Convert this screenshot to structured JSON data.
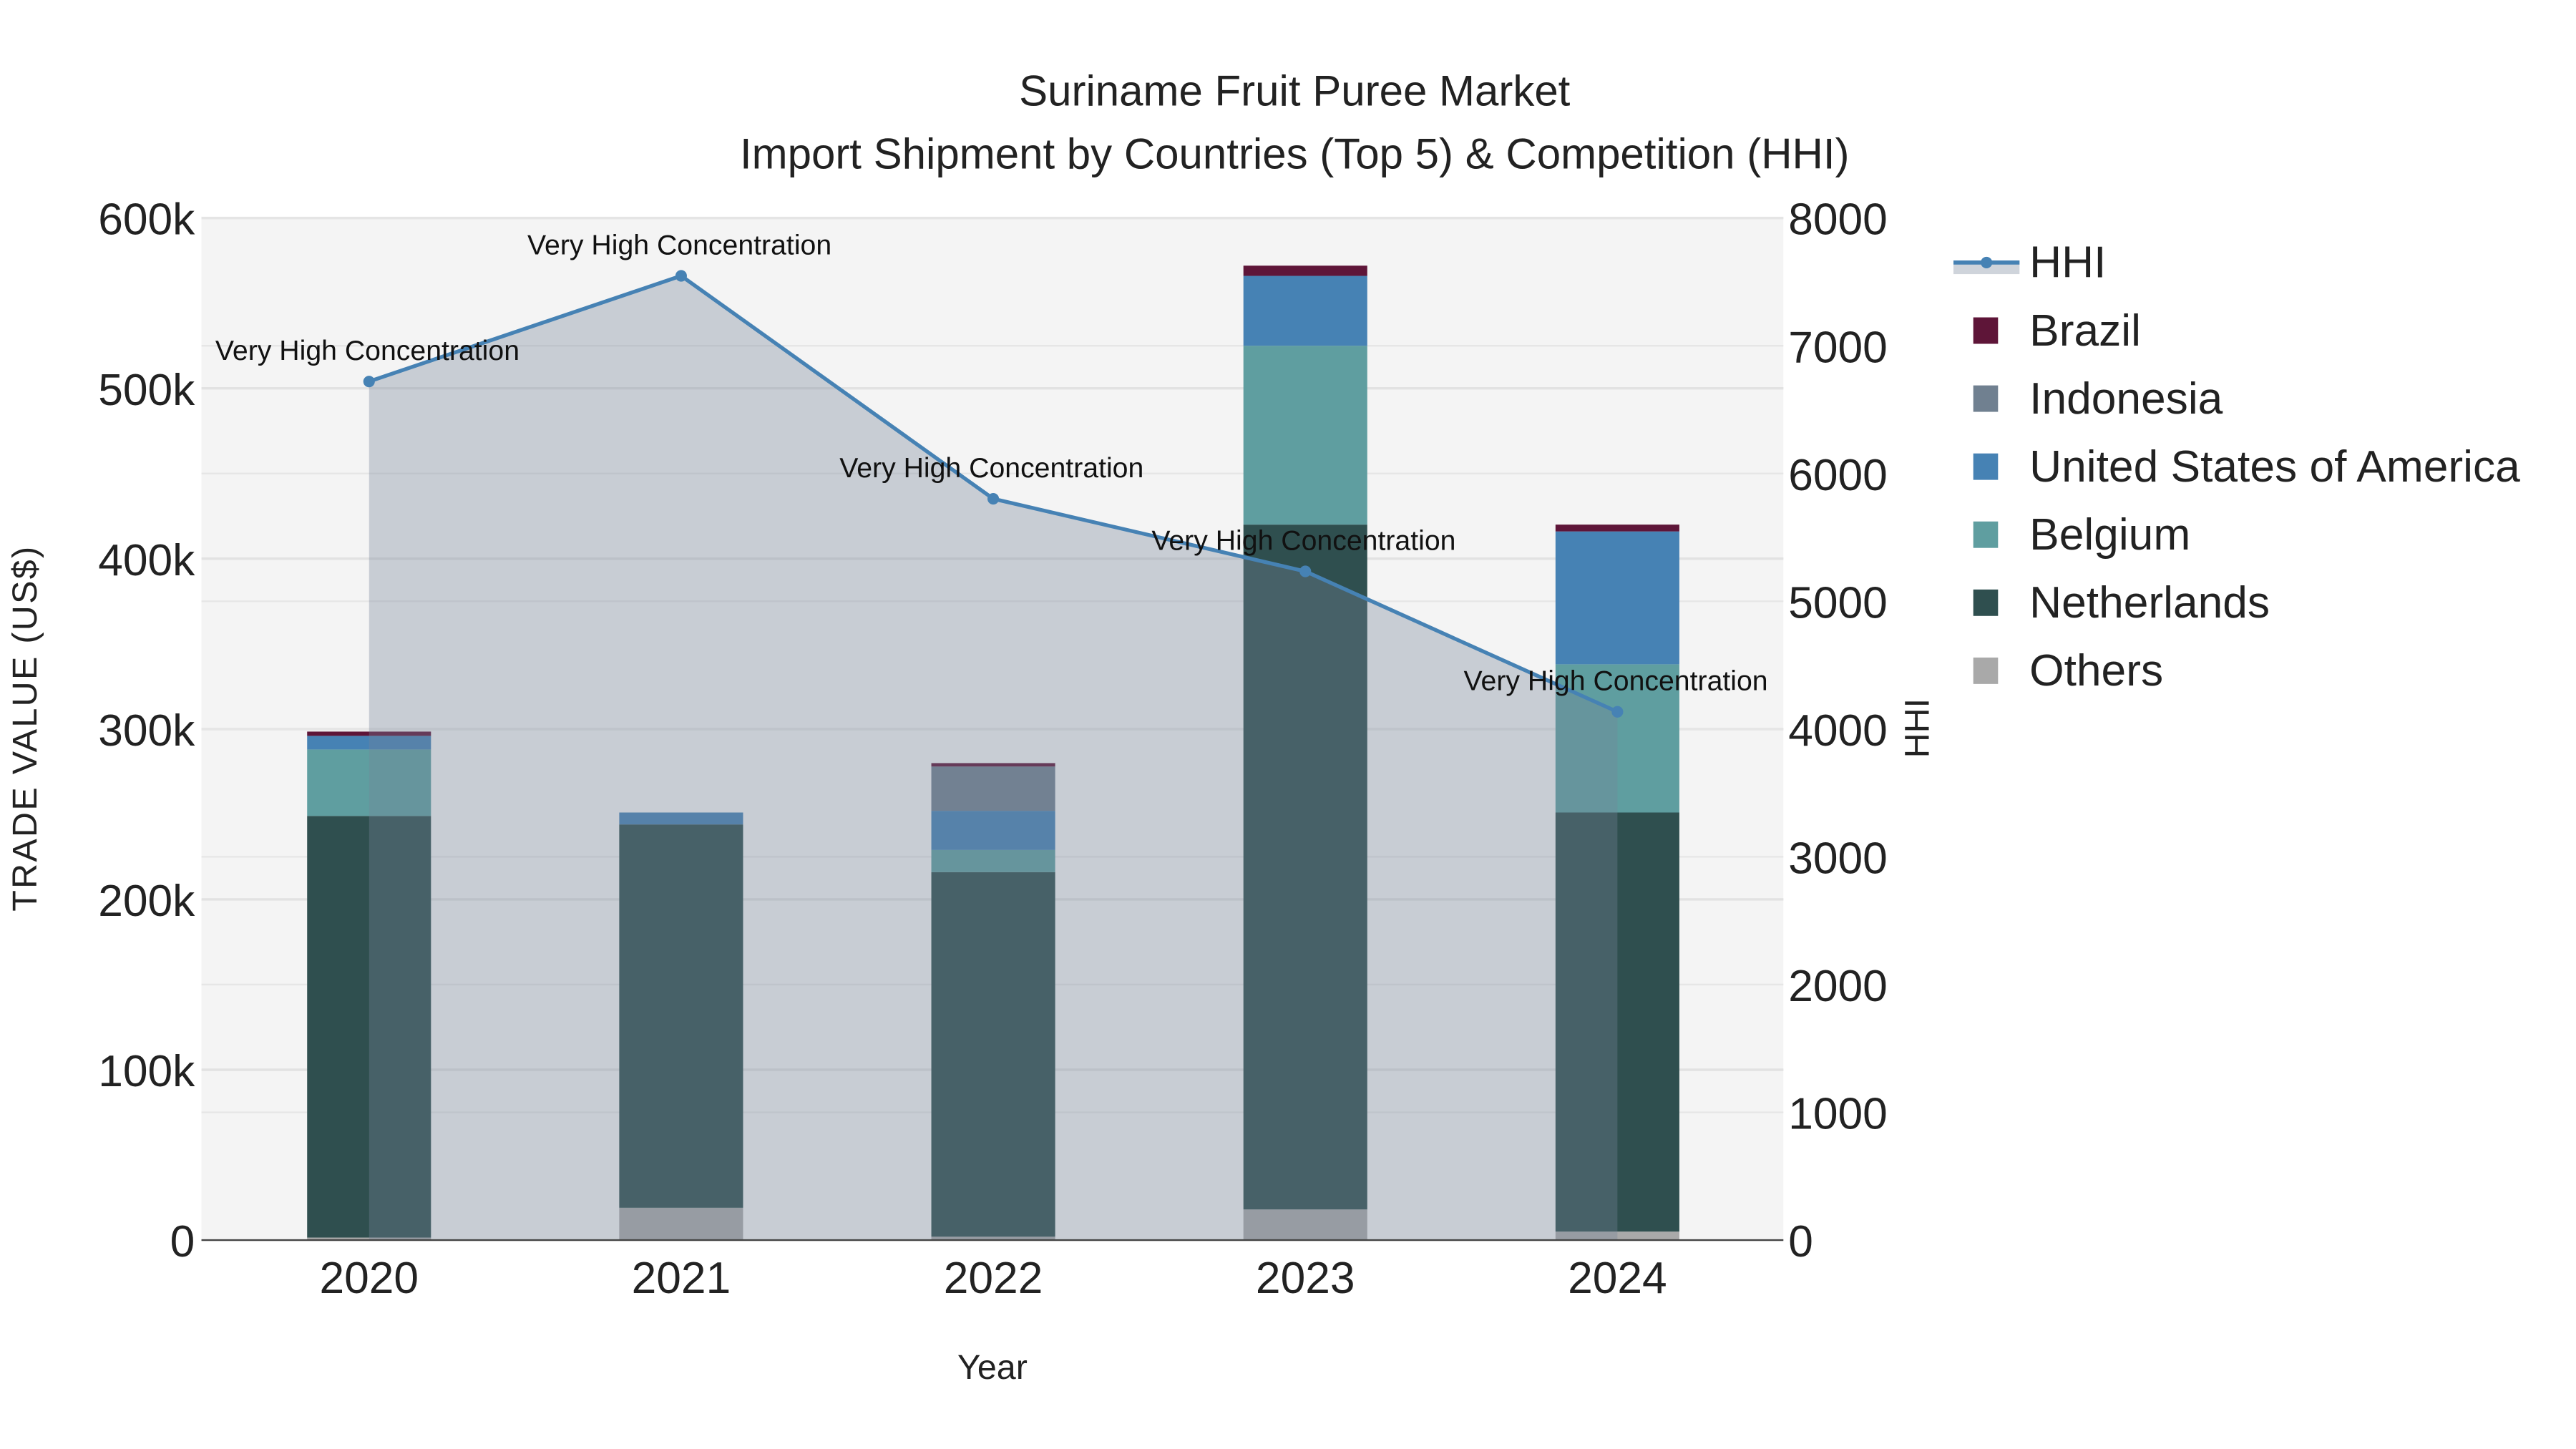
{
  "chart_data": {
    "type": "bar",
    "title": "Suriname Fruit Puree Market",
    "subtitle": "Import Shipment by Countries (Top 5) & Competition (HHI)",
    "xlabel": "Year",
    "ylabel": "TRADE VALUE (US$)",
    "y2label": "HHI",
    "categories": [
      "2020",
      "2021",
      "2022",
      "2023",
      "2024"
    ],
    "ylim": [
      0,
      600000
    ],
    "y2lim": [
      0,
      8000
    ],
    "yticks": [
      0,
      100000,
      200000,
      300000,
      400000,
      500000,
      600000
    ],
    "ytick_labels": [
      "0",
      "100k",
      "200k",
      "300k",
      "400k",
      "500k",
      "600k"
    ],
    "y2ticks": [
      0,
      1000,
      2000,
      3000,
      4000,
      5000,
      6000,
      7000,
      8000
    ],
    "y2tick_labels": [
      "0",
      "1000",
      "2000",
      "3000",
      "4000",
      "5000",
      "6000",
      "7000",
      "8000"
    ],
    "grid": true,
    "legend_position": "right",
    "series": [
      {
        "name": "Others",
        "color": "#a9a9a9",
        "values": [
          1500,
          19000,
          2000,
          18000,
          5000
        ]
      },
      {
        "name": "Netherlands",
        "color": "#2f4f4f",
        "values": [
          247500,
          225000,
          214000,
          402000,
          246000
        ]
      },
      {
        "name": "Belgium",
        "color": "#5f9ea0",
        "values": [
          39000,
          0,
          13000,
          105000,
          87000
        ]
      },
      {
        "name": "United States of America",
        "color": "#4682b4",
        "values": [
          8000,
          7000,
          23000,
          41000,
          78000
        ]
      },
      {
        "name": "Indonesia",
        "color": "#708090",
        "values": [
          0,
          0,
          26000,
          0,
          0
        ]
      },
      {
        "name": "Brazil",
        "color": "#5e1538",
        "values": [
          2500,
          0,
          2000,
          6000,
          4000
        ]
      }
    ],
    "line": {
      "name": "HHI",
      "color": "#4682b4",
      "values": [
        6720,
        7547,
        5802,
        5234,
        4135
      ],
      "annotations": [
        "Very High Concentration",
        "Very High Concentration",
        "Very High Concentration",
        "Very High Concentration",
        "Very High Concentration"
      ]
    },
    "legend_order": [
      "HHI",
      "Brazil",
      "Indonesia",
      "United States of America",
      "Belgium",
      "Netherlands",
      "Others"
    ]
  }
}
